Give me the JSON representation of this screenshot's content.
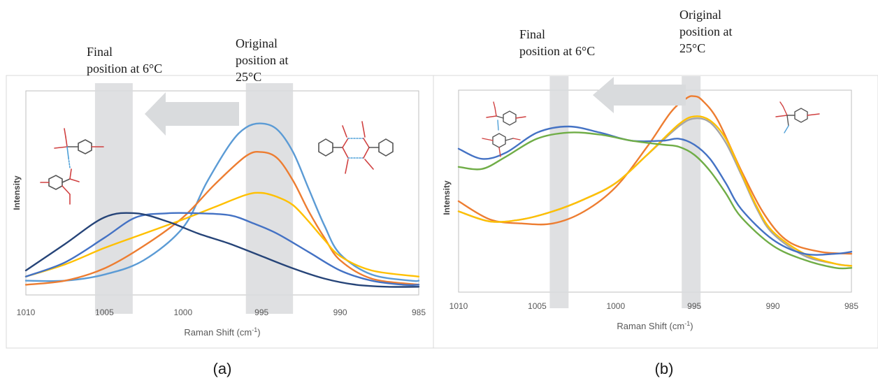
{
  "chart_data": [
    {
      "panel": "(a)",
      "type": "line",
      "xlabel": "Raman Shift (cm",
      "xlabel_sup": "-1",
      "xlabel_close": ")",
      "ylabel": "Intensity",
      "x_ticks": [
        1010,
        1005,
        1000,
        995,
        990,
        985
      ],
      "xlim": [
        1010,
        985
      ],
      "x_reversed": true,
      "grid": false,
      "annotations": {
        "final": [
          "Final",
          "position at 6°C"
        ],
        "original": [
          "Original",
          "position at",
          "25°C"
        ]
      },
      "bands": {
        "final": [
          1005.6,
          1003.2
        ],
        "original": [
          996.0,
          993.0
        ]
      },
      "series": [
        {
          "color": "#5b9bd5",
          "x": [
            1010,
            1007.5,
            1005,
            1002.5,
            1000,
            998.5,
            997,
            996,
            995,
            994,
            993,
            992,
            991,
            990,
            988,
            985.5,
            985
          ],
          "y": [
            0.07,
            0.07,
            0.1,
            0.17,
            0.33,
            0.55,
            0.74,
            0.82,
            0.84,
            0.81,
            0.7,
            0.52,
            0.34,
            0.2,
            0.1,
            0.07,
            0.07
          ]
        },
        {
          "color": "#ed7d31",
          "x": [
            1010,
            1007.5,
            1005,
            1002.5,
            1000,
            998,
            996,
            995,
            994,
            993,
            992,
            991,
            990,
            988,
            985
          ],
          "y": [
            0.05,
            0.07,
            0.13,
            0.24,
            0.38,
            0.54,
            0.68,
            0.7,
            0.67,
            0.56,
            0.41,
            0.28,
            0.17,
            0.08,
            0.05
          ]
        },
        {
          "color": "#ffc000",
          "x": [
            1010,
            1007.5,
            1005,
            1002.5,
            1000,
            998,
            996,
            995,
            994,
            993,
            992,
            991,
            990,
            988,
            985
          ],
          "y": [
            0.09,
            0.15,
            0.23,
            0.3,
            0.37,
            0.43,
            0.49,
            0.5,
            0.48,
            0.44,
            0.36,
            0.27,
            0.19,
            0.12,
            0.09
          ]
        },
        {
          "color": "#4472c4",
          "x": [
            1010,
            1007.5,
            1005,
            1003,
            1001,
            999,
            997,
            995.5,
            994,
            992,
            990,
            988,
            986,
            985
          ],
          "y": [
            0.09,
            0.16,
            0.28,
            0.38,
            0.4,
            0.4,
            0.39,
            0.35,
            0.3,
            0.21,
            0.12,
            0.07,
            0.05,
            0.05
          ]
        },
        {
          "color": "#264478",
          "x": [
            1010,
            1007.5,
            1005,
            1003,
            1001,
            999,
            997,
            995,
            993,
            991,
            989,
            987,
            985
          ],
          "y": [
            0.12,
            0.25,
            0.38,
            0.4,
            0.36,
            0.3,
            0.25,
            0.19,
            0.13,
            0.08,
            0.05,
            0.04,
            0.04
          ]
        }
      ]
    },
    {
      "panel": "(b)",
      "type": "line",
      "xlabel": "Raman Shift (cm",
      "xlabel_sup": "-1",
      "xlabel_close": ")",
      "ylabel": "Intensity",
      "x_ticks": [
        1010,
        1005,
        1000,
        995,
        990,
        985
      ],
      "xlim": [
        1010,
        985
      ],
      "x_reversed": true,
      "grid": false,
      "annotations": {
        "final": [
          "Final",
          "position at 6°C"
        ],
        "original": [
          "Original",
          "position at",
          "25°C"
        ]
      },
      "bands": {
        "final": [
          1004.2,
          1003.0
        ],
        "original": [
          995.8,
          994.6
        ]
      },
      "series": [
        {
          "color": "#ed7d31",
          "x": [
            1010,
            1008,
            1006,
            1004,
            1002,
            1000,
            998,
            996.5,
            995.5,
            995,
            994.5,
            993.5,
            992,
            990.5,
            989,
            987,
            985
          ],
          "y": [
            0.45,
            0.36,
            0.34,
            0.34,
            0.4,
            0.52,
            0.72,
            0.89,
            0.96,
            0.97,
            0.95,
            0.85,
            0.6,
            0.38,
            0.25,
            0.2,
            0.19
          ]
        },
        {
          "color": "#a5a5a5",
          "x": [
            1010,
            1008,
            1006,
            1004,
            1002,
            1000,
            998,
            996,
            995,
            994,
            993,
            992,
            991,
            990,
            988,
            986,
            985
          ],
          "y": [
            0.4,
            0.35,
            0.36,
            0.4,
            0.46,
            0.54,
            0.68,
            0.82,
            0.86,
            0.84,
            0.74,
            0.58,
            0.41,
            0.29,
            0.18,
            0.14,
            0.13
          ]
        },
        {
          "color": "#ffc000",
          "x": [
            1010,
            1008,
            1006,
            1004,
            1002,
            1000,
            998,
            996,
            995,
            994,
            993,
            992,
            991,
            990,
            988,
            986,
            985
          ],
          "y": [
            0.4,
            0.35,
            0.36,
            0.4,
            0.46,
            0.54,
            0.68,
            0.83,
            0.87,
            0.85,
            0.76,
            0.59,
            0.42,
            0.3,
            0.19,
            0.14,
            0.13
          ]
        },
        {
          "color": "#4472c4",
          "x": [
            1010,
            1008.5,
            1007,
            1005,
            1003,
            1001,
            999,
            997,
            996,
            995,
            994,
            993,
            992,
            990,
            988,
            986,
            985
          ],
          "y": [
            0.71,
            0.66,
            0.69,
            0.79,
            0.82,
            0.79,
            0.75,
            0.75,
            0.76,
            0.73,
            0.66,
            0.54,
            0.41,
            0.26,
            0.19,
            0.19,
            0.2
          ]
        },
        {
          "color": "#70ad47",
          "x": [
            1010,
            1008.5,
            1007,
            1005,
            1003,
            1001,
            999,
            997,
            996,
            995,
            994,
            993,
            992,
            990,
            988,
            986,
            985
          ],
          "y": [
            0.62,
            0.61,
            0.67,
            0.76,
            0.79,
            0.78,
            0.75,
            0.73,
            0.72,
            0.68,
            0.6,
            0.49,
            0.37,
            0.23,
            0.16,
            0.12,
            0.12
          ]
        }
      ]
    }
  ]
}
